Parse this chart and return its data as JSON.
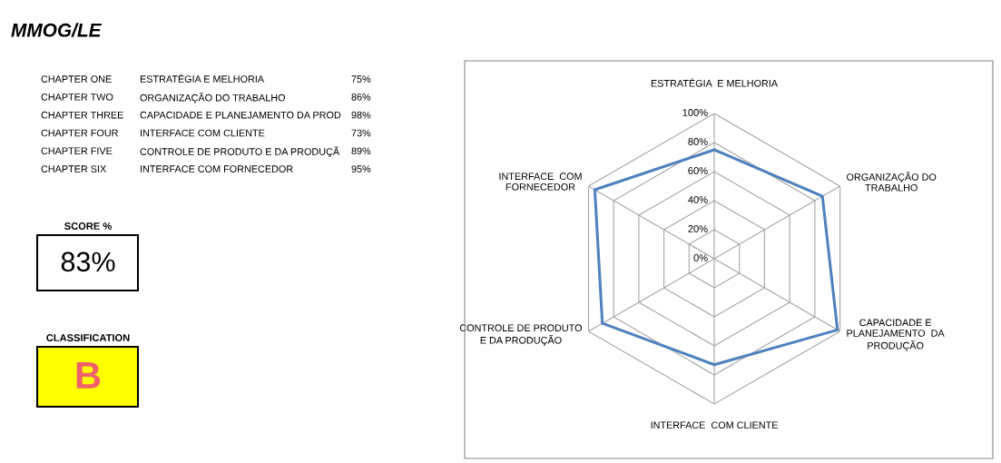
{
  "chart_data": [
    {
      "type": "other",
      "title": "MMOG/LE",
      "annotations": [
        "CHAPTER ONE",
        "ESTRATÉGIA E MELHORIA",
        "75%",
        "CHAPTER TWO",
        "ORGANIZAÇÃO DO TRABALHO",
        "86%",
        "CHAPTER THREE",
        "CAPACIDADE E PLANEJAMENTO DA PROD",
        "98%",
        "CHAPTER FOUR",
        "INTERFACE COM CLIENTE",
        "73%",
        "CHAPTER FIVE",
        "CONTROLE DE PRODUTO E DA PRODUÇÃ",
        "89%",
        "CHAPTER SIX",
        "INTERFACE COM FORNECEDOR",
        "95%",
        "SCORE %",
        "83%",
        "CLASSIFICATION",
        "B"
      ],
      "colors": [
        "#ffff00",
        "#f0606a"
      ]
    },
    {
      "type": "radar",
      "categories": [
        "ESTRATÉGIA  E MELHORIA",
        "ORGANIZAÇÃO DO\nTRABALHO",
        "CAPACIDADE E\nPLANEJAMENTO  DA\nPRODUÇÃO",
        "INTERFACE  COM CLIENTE",
        "CONTROLE DE PRODUTO\nE DA PRODUÇÃO",
        "INTERFACE  COM\nFORNECEDOR"
      ],
      "series": [
        {
          "color": "#4f81bd",
          "values": [
            75,
            86,
            98,
            73,
            89,
            95
          ]
        }
      ],
      "ylim": [
        0,
        100
      ],
      "yticks": [
        {
          "value": 0,
          "label": "0%"
        },
        {
          "value": 20,
          "label": "20%"
        },
        {
          "value": 40,
          "label": "40%"
        },
        {
          "value": 60,
          "label": "60%"
        },
        {
          "value": 80,
          "label": "80%"
        },
        {
          "value": 100,
          "label": "100%"
        }
      ],
      "grid": true,
      "marker": "none",
      "line_style": "solid"
    }
  ]
}
